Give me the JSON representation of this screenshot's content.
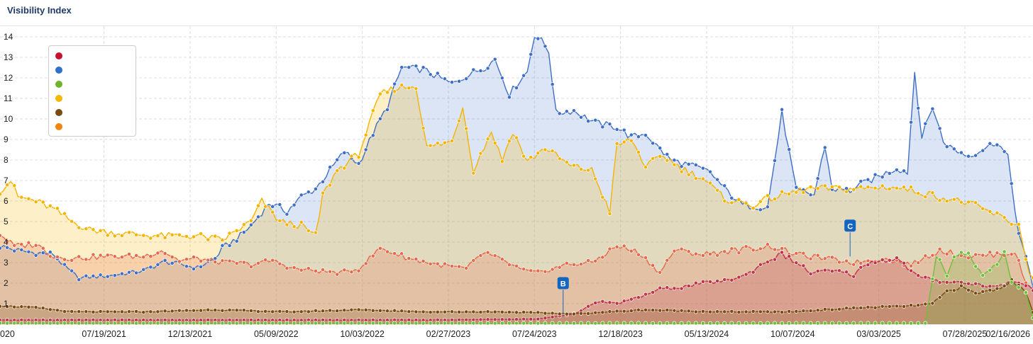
{
  "widget": {
    "title": "Visibility Index"
  },
  "chart_data": {
    "type": "area",
    "title": "Visibility Index",
    "xlabel": "",
    "ylabel": "",
    "ylim": [
      0,
      14.3
    ],
    "y_ticks": [
      1,
      2,
      3,
      4,
      5,
      6,
      7,
      8,
      9,
      10,
      11,
      12,
      13,
      14
    ],
    "x_ticks": [
      "020",
      "07/19/2021",
      "12/13/2021",
      "05/09/2022",
      "10/03/2022",
      "02/27/2023",
      "07/24/2023",
      "12/18/2023",
      "05/13/2024",
      "10/07/2024",
      "03/03/2025",
      "07/28/2025",
      "02/16/2026"
    ],
    "grid": true,
    "legend_placement": "top-left",
    "markers": [
      {
        "label": "B",
        "week": 157,
        "value": 0.5
      },
      {
        "label": "C",
        "week": 237,
        "value": 3.3
      }
    ],
    "series": [
      {
        "color": "#3f6fc5",
        "keyframes": [
          [
            0,
            3.8
          ],
          [
            6,
            3.55
          ],
          [
            15,
            3.4
          ],
          [
            18,
            2.8
          ],
          [
            22,
            2.25
          ],
          [
            30,
            2.35
          ],
          [
            40,
            2.6
          ],
          [
            46,
            3.05
          ],
          [
            55,
            2.75
          ],
          [
            60,
            3.2
          ],
          [
            62,
            3.7
          ],
          [
            67,
            4.3
          ],
          [
            70,
            4.8
          ],
          [
            75,
            5.9
          ],
          [
            80,
            5.5
          ],
          [
            84,
            6.2
          ],
          [
            88,
            6.6
          ],
          [
            92,
            7.5
          ],
          [
            96,
            8.4
          ],
          [
            100,
            7.8
          ],
          [
            104,
            9.3
          ],
          [
            108,
            10.6
          ],
          [
            112,
            12.5
          ],
          [
            118,
            12.4
          ],
          [
            126,
            11.7
          ],
          [
            130,
            12.1
          ],
          [
            135,
            12.5
          ],
          [
            138,
            12.9
          ],
          [
            142,
            11.2
          ],
          [
            145,
            11.9
          ],
          [
            147,
            12.3
          ],
          [
            149,
            14.1
          ],
          [
            151,
            13.8
          ],
          [
            153,
            13.3
          ],
          [
            155,
            10.3
          ],
          [
            160,
            10.4
          ],
          [
            166,
            9.8
          ],
          [
            172,
            9.6
          ],
          [
            176,
            9.1
          ],
          [
            180,
            9.3
          ],
          [
            183,
            8.7
          ],
          [
            187,
            8.0
          ],
          [
            193,
            7.7
          ],
          [
            198,
            7.4
          ],
          [
            202,
            6.6
          ],
          [
            207,
            5.8
          ],
          [
            214,
            5.7
          ],
          [
            218,
            10.3
          ],
          [
            222,
            6.5
          ],
          [
            227,
            6.3
          ],
          [
            230,
            8.7
          ],
          [
            232,
            6.6
          ],
          [
            237,
            6.5
          ],
          [
            240,
            6.8
          ],
          [
            250,
            7.6
          ],
          [
            253,
            7.4
          ],
          [
            255,
            12.3
          ],
          [
            257,
            9.1
          ],
          [
            260,
            10.6
          ],
          [
            263,
            8.9
          ],
          [
            266,
            8.5
          ],
          [
            270,
            8.2
          ],
          [
            276,
            8.7
          ],
          [
            278,
            8.9
          ],
          [
            281,
            8.1
          ],
          [
            284,
            4.4
          ],
          [
            287,
            2.6
          ],
          [
            288,
            1.8
          ]
        ]
      },
      {
        "color": "#f4b400",
        "keyframes": [
          [
            0,
            6.5
          ],
          [
            3,
            7.0
          ],
          [
            5,
            6.2
          ],
          [
            10,
            6.0
          ],
          [
            15,
            5.6
          ],
          [
            20,
            5.0
          ],
          [
            25,
            4.6
          ],
          [
            35,
            4.4
          ],
          [
            45,
            4.3
          ],
          [
            55,
            4.3
          ],
          [
            62,
            4.1
          ],
          [
            70,
            5.0
          ],
          [
            73,
            6.0
          ],
          [
            78,
            5.0
          ],
          [
            84,
            4.8
          ],
          [
            88,
            4.3
          ],
          [
            90,
            6.3
          ],
          [
            94,
            7.5
          ],
          [
            100,
            8.3
          ],
          [
            106,
            11.2
          ],
          [
            110,
            11.5
          ],
          [
            116,
            11.6
          ],
          [
            119,
            8.6
          ],
          [
            126,
            8.9
          ],
          [
            129,
            10.6
          ],
          [
            132,
            7.5
          ],
          [
            137,
            9.4
          ],
          [
            140,
            8.0
          ],
          [
            143,
            9.4
          ],
          [
            147,
            7.9
          ],
          [
            152,
            8.6
          ],
          [
            159,
            7.7
          ],
          [
            165,
            7.5
          ],
          [
            170,
            5.5
          ],
          [
            172,
            8.7
          ],
          [
            176,
            9.0
          ],
          [
            180,
            7.7
          ],
          [
            185,
            8.2
          ],
          [
            190,
            7.6
          ],
          [
            196,
            7.1
          ],
          [
            202,
            6.1
          ],
          [
            210,
            5.8
          ],
          [
            214,
            6.1
          ],
          [
            225,
            6.6
          ],
          [
            240,
            6.6
          ],
          [
            248,
            6.7
          ],
          [
            255,
            6.5
          ],
          [
            262,
            6.2
          ],
          [
            270,
            5.9
          ],
          [
            278,
            5.3
          ],
          [
            284,
            4.8
          ],
          [
            287,
            2.5
          ],
          [
            288,
            2.2
          ]
        ]
      },
      {
        "color": "#e8684a",
        "keyframes": [
          [
            0,
            4.4
          ],
          [
            4,
            3.8
          ],
          [
            10,
            3.9
          ],
          [
            15,
            3.3
          ],
          [
            20,
            3.2
          ],
          [
            30,
            3.3
          ],
          [
            40,
            3.3
          ],
          [
            45,
            3.6
          ],
          [
            50,
            3.1
          ],
          [
            55,
            3.2
          ],
          [
            62,
            3.0
          ],
          [
            66,
            3.0
          ],
          [
            70,
            2.9
          ],
          [
            76,
            3.1
          ],
          [
            82,
            2.7
          ],
          [
            88,
            2.6
          ],
          [
            95,
            2.5
          ],
          [
            100,
            2.7
          ],
          [
            106,
            3.7
          ],
          [
            114,
            3.2
          ],
          [
            122,
            2.9
          ],
          [
            130,
            2.7
          ],
          [
            135,
            3.5
          ],
          [
            140,
            3.1
          ],
          [
            146,
            2.6
          ],
          [
            150,
            2.5
          ],
          [
            158,
            2.9
          ],
          [
            165,
            3.0
          ],
          [
            172,
            3.8
          ],
          [
            178,
            3.5
          ],
          [
            184,
            2.5
          ],
          [
            188,
            3.6
          ],
          [
            196,
            3.4
          ],
          [
            205,
            3.6
          ],
          [
            215,
            3.8
          ],
          [
            222,
            3.4
          ],
          [
            230,
            3.2
          ],
          [
            238,
            3.0
          ],
          [
            246,
            3.2
          ],
          [
            254,
            2.9
          ],
          [
            262,
            3.6
          ],
          [
            270,
            3.3
          ],
          [
            278,
            3.4
          ],
          [
            283,
            3.5
          ],
          [
            286,
            2.0
          ],
          [
            288,
            1.7
          ]
        ]
      },
      {
        "color": "#c0334a",
        "keyframes": [
          [
            0,
            0.2
          ],
          [
            60,
            0.2
          ],
          [
            120,
            0.2
          ],
          [
            150,
            0.25
          ],
          [
            160,
            0.5
          ],
          [
            167,
            1.1
          ],
          [
            172,
            1.0
          ],
          [
            178,
            1.3
          ],
          [
            184,
            1.7
          ],
          [
            190,
            1.8
          ],
          [
            196,
            2.0
          ],
          [
            202,
            2.1
          ],
          [
            208,
            2.4
          ],
          [
            214,
            3.1
          ],
          [
            218,
            3.4
          ],
          [
            222,
            3.0
          ],
          [
            226,
            2.5
          ],
          [
            232,
            2.6
          ],
          [
            238,
            2.4
          ],
          [
            242,
            3.0
          ],
          [
            250,
            3.2
          ],
          [
            256,
            2.3
          ],
          [
            262,
            2.1
          ],
          [
            270,
            2.0
          ],
          [
            278,
            1.8
          ],
          [
            282,
            2.1
          ],
          [
            286,
            1.9
          ],
          [
            288,
            1.7
          ]
        ]
      },
      {
        "color": "#7a4a10",
        "keyframes": [
          [
            0,
            0.9
          ],
          [
            10,
            0.8
          ],
          [
            20,
            0.6
          ],
          [
            40,
            0.6
          ],
          [
            60,
            0.7
          ],
          [
            80,
            0.6
          ],
          [
            100,
            0.7
          ],
          [
            120,
            0.6
          ],
          [
            140,
            0.6
          ],
          [
            160,
            0.5
          ],
          [
            180,
            0.7
          ],
          [
            200,
            0.6
          ],
          [
            220,
            0.6
          ],
          [
            240,
            0.8
          ],
          [
            255,
            0.9
          ],
          [
            260,
            1.0
          ],
          [
            264,
            1.6
          ],
          [
            268,
            1.8
          ],
          [
            272,
            1.5
          ],
          [
            278,
            1.7
          ],
          [
            282,
            2.1
          ],
          [
            286,
            1.6
          ],
          [
            288,
            0.6
          ]
        ]
      },
      {
        "color": "#6fbf3a",
        "keyframes": [
          [
            0,
            0.05
          ],
          [
            250,
            0.05
          ],
          [
            258,
            0.05
          ],
          [
            261,
            3.4
          ],
          [
            264,
            2.3
          ],
          [
            266,
            3.4
          ],
          [
            270,
            3.4
          ],
          [
            274,
            2.4
          ],
          [
            278,
            3.0
          ],
          [
            280,
            3.5
          ],
          [
            282,
            2.0
          ],
          [
            286,
            1.5
          ],
          [
            288,
            0.3
          ]
        ]
      }
    ]
  },
  "colors": {
    "red": "#c0334a",
    "blue": "#3f6fc5",
    "green": "#6fbf3a",
    "yellow": "#f4b400",
    "brown": "#7a4a10",
    "orange": "#f39c12",
    "salmon": "#e8684a"
  }
}
